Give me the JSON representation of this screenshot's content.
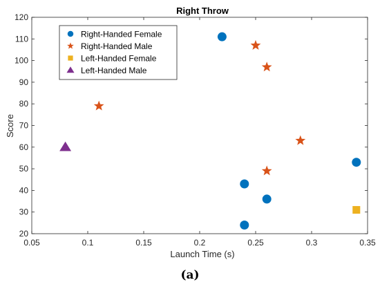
{
  "chart_data": {
    "type": "scatter",
    "title": "Right Throw",
    "xlabel": "Launch Time (s)",
    "ylabel": "Score",
    "xlim": [
      0.05,
      0.35
    ],
    "ylim": [
      20,
      120
    ],
    "xticks": [
      "0.05",
      "0.1",
      "0.15",
      "0.2",
      "0.25",
      "0.3",
      "0.35"
    ],
    "yticks": [
      "20",
      "30",
      "40",
      "50",
      "60",
      "70",
      "80",
      "90",
      "100",
      "110",
      "120"
    ],
    "grid": false,
    "legend_position": "top-left",
    "series": [
      {
        "name": "Right-Handed Female",
        "marker": "circle",
        "color": "#0072BD",
        "points": [
          [
            0.22,
            111
          ],
          [
            0.24,
            43
          ],
          [
            0.24,
            24
          ],
          [
            0.26,
            36
          ],
          [
            0.34,
            53
          ]
        ]
      },
      {
        "name": "Right-Handed Male",
        "marker": "star",
        "color": "#D95319",
        "points": [
          [
            0.11,
            79
          ],
          [
            0.25,
            107
          ],
          [
            0.26,
            97
          ],
          [
            0.26,
            49
          ],
          [
            0.29,
            63
          ]
        ]
      },
      {
        "name": "Left-Handed Female",
        "marker": "square",
        "color": "#EDB120",
        "points": [
          [
            0.34,
            31
          ]
        ]
      },
      {
        "name": "Left-Handed Male",
        "marker": "triangle",
        "color": "#7E2F8E",
        "points": [
          [
            0.08,
            60
          ]
        ]
      }
    ]
  },
  "caption": "(a)"
}
